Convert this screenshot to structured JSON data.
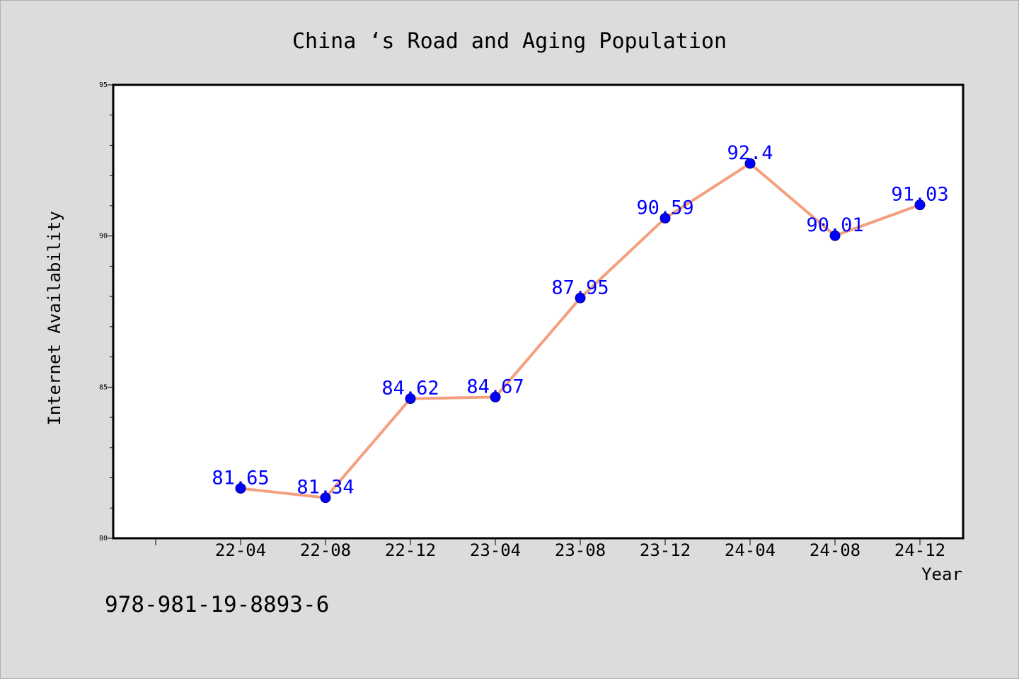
{
  "chart_data": {
    "type": "line",
    "title": "China ‘s Road and Aging Population",
    "xlabel": "Year",
    "ylabel": "Internet Availability",
    "categories": [
      "22-04",
      "22-08",
      "22-12",
      "23-04",
      "23-08",
      "23-12",
      "24-04",
      "24-08",
      "24-12"
    ],
    "series": [
      {
        "values": [
          81.65,
          81.34,
          84.62,
          84.67,
          87.95,
          90.59,
          92.4,
          90.01,
          91.03
        ],
        "labels": [
          "81.65",
          "81.34",
          "84.62",
          "84.67",
          "87.95",
          "90.59",
          "92.4",
          "90.01",
          "91.03"
        ]
      }
    ],
    "ylim": [
      80,
      95
    ],
    "yticks": [
      "80",
      "85",
      "90",
      "95"
    ],
    "grid": false,
    "legend": "none",
    "colors": {
      "line": "#f4a07e",
      "marker": "#0000ff",
      "label": "#0000ff",
      "background": "#dcdcdc",
      "plot_area": "#ffffff"
    }
  },
  "footnote": "978-981-19-8893-6"
}
